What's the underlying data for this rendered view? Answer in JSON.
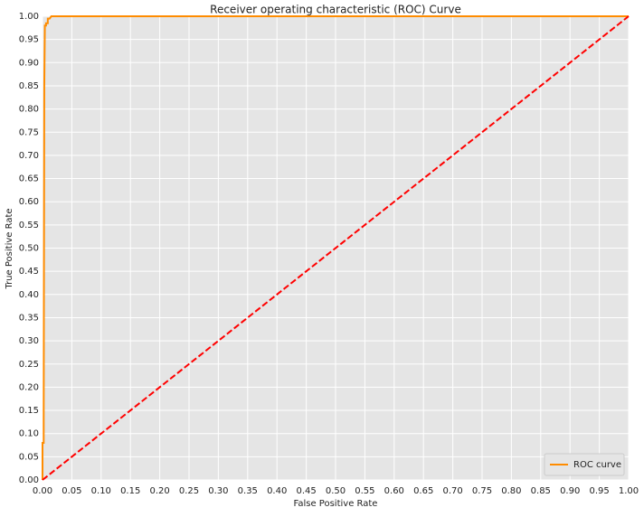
{
  "chart_data": {
    "type": "line",
    "title": "Receiver operating characteristic (ROC) Curve",
    "xlabel": "False Positive Rate",
    "ylabel": "True Positive Rate",
    "xlim": [
      0,
      1
    ],
    "ylim": [
      0,
      1
    ],
    "grid": true,
    "legend": "lower right",
    "xticks": [
      {
        "value": 0,
        "label": "0.00"
      },
      0.05,
      {
        "value": 0.1,
        "label": "0.10"
      },
      0.15,
      {
        "value": 0.2,
        "label": "0.20"
      },
      0.25,
      {
        "value": 0.3,
        "label": "0.30"
      },
      0.35,
      {
        "value": 0.4,
        "label": "0.40"
      },
      0.45,
      {
        "value": 0.5,
        "label": "0.50"
      },
      0.55,
      {
        "value": 0.6,
        "label": "0.60"
      },
      0.65,
      {
        "value": 0.7,
        "label": "0.70"
      },
      0.75,
      {
        "value": 0.8,
        "label": "0.80"
      },
      0.85,
      {
        "value": 0.9,
        "label": "0.90"
      },
      0.95,
      {
        "value": 1,
        "label": "1.00"
      }
    ],
    "yticks": [
      {
        "value": 0,
        "label": "0.00"
      },
      0.05,
      {
        "value": 0.1,
        "label": "0.10"
      },
      0.15,
      {
        "value": 0.2,
        "label": "0.20"
      },
      0.25,
      {
        "value": 0.3,
        "label": "0.30"
      },
      0.35,
      {
        "value": 0.4,
        "label": "0.40"
      },
      0.45,
      {
        "value": 0.5,
        "label": "0.50"
      },
      0.55,
      {
        "value": 0.6,
        "label": "0.60"
      },
      0.65,
      {
        "value": 0.7,
        "label": "0.70"
      },
      0.75,
      {
        "value": 0.8,
        "label": "0.80"
      },
      0.85,
      {
        "value": 0.9,
        "label": "0.90"
      },
      0.95,
      {
        "value": 1,
        "label": "1.00"
      }
    ],
    "series": [
      {
        "name": "ROC curve",
        "color": "#ff8c00",
        "x": [
          0,
          0,
          0.002,
          0.002,
          0.003,
          0.004,
          0.006,
          0.006,
          0.009,
          0.009,
          0.012,
          0.015,
          1
        ],
        "values": [
          0,
          0.08,
          0.08,
          0.125,
          0.85,
          0.98,
          0.98,
          0.985,
          0.985,
          0.995,
          0.995,
          1,
          1
        ]
      },
      {
        "color": "#ff0000",
        "dashed": true,
        "x": [
          0,
          1
        ],
        "values": [
          0,
          1
        ]
      }
    ]
  }
}
